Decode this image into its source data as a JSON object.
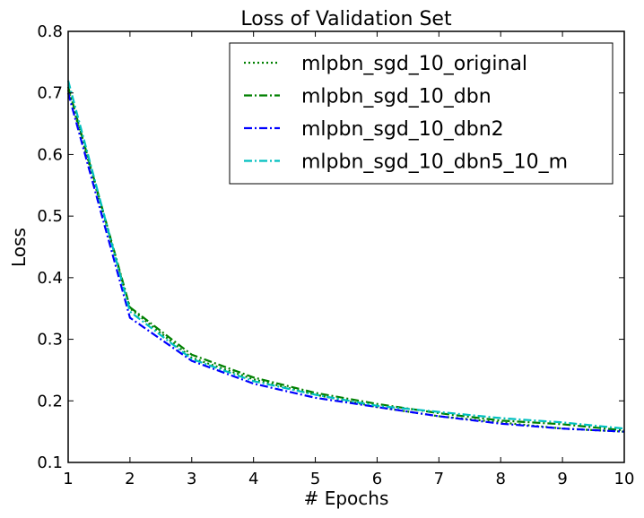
{
  "chart_data": {
    "type": "line",
    "title": "Loss of Validation Set",
    "xlabel": "# Epochs",
    "ylabel": "Loss",
    "xlim": [
      1,
      10
    ],
    "ylim": [
      0.1,
      0.8
    ],
    "x_ticks": [
      "1",
      "2",
      "3",
      "4",
      "5",
      "6",
      "7",
      "8",
      "9",
      "10"
    ],
    "y_ticks": [
      "0.1",
      "0.2",
      "0.3",
      "0.4",
      "0.5",
      "0.6",
      "0.7",
      "0.8"
    ],
    "legend_position": "top-right",
    "x": [
      1,
      2,
      3,
      4,
      5,
      6,
      7,
      8,
      9,
      10
    ],
    "series": [
      {
        "name": "mlpbn_sgd_10_original",
        "values": [
          0.705,
          0.35,
          0.27,
          0.235,
          0.21,
          0.19,
          0.175,
          0.165,
          0.155,
          0.15
        ],
        "color": "#008000",
        "style": "dotted"
      },
      {
        "name": "mlpbn_sgd_10_dbn",
        "values": [
          0.71,
          0.352,
          0.275,
          0.238,
          0.213,
          0.195,
          0.18,
          0.168,
          0.162,
          0.152
        ],
        "color": "#008000",
        "style": "dashdot"
      },
      {
        "name": "mlpbn_sgd_10_dbn2",
        "values": [
          0.7,
          0.335,
          0.265,
          0.228,
          0.205,
          0.19,
          0.175,
          0.163,
          0.155,
          0.15
        ],
        "color": "#0000ff",
        "style": "dashdot"
      },
      {
        "name": "mlpbn_sgd_10_dbn5_10_m",
        "values": [
          0.72,
          0.345,
          0.268,
          0.232,
          0.21,
          0.192,
          0.182,
          0.172,
          0.165,
          0.155
        ],
        "color": "#00bfbf",
        "style": "dashdot"
      }
    ]
  }
}
